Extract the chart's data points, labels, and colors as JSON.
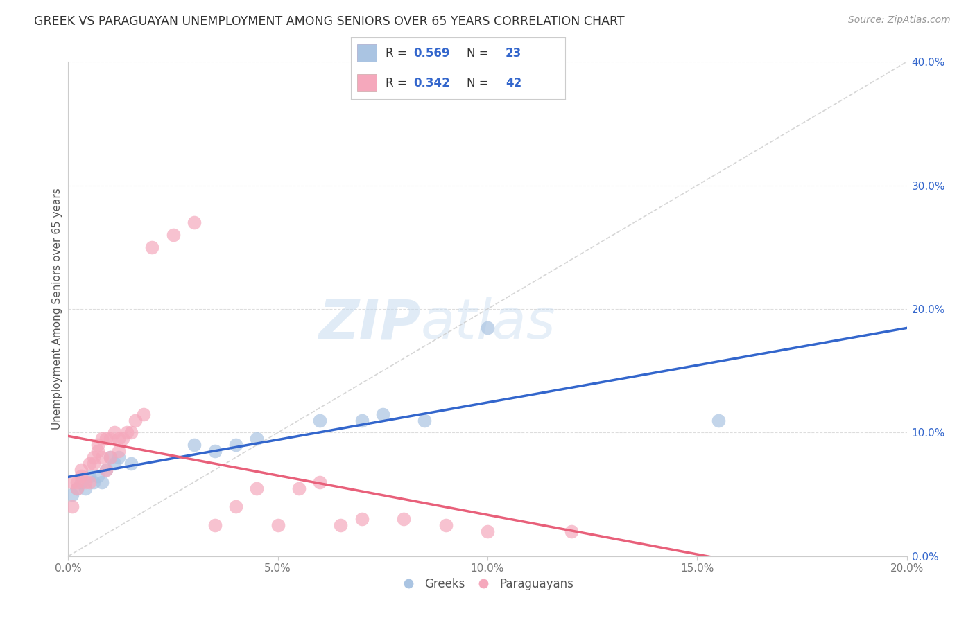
{
  "title": "GREEK VS PARAGUAYAN UNEMPLOYMENT AMONG SENIORS OVER 65 YEARS CORRELATION CHART",
  "source": "Source: ZipAtlas.com",
  "ylabel": "Unemployment Among Seniors over 65 years",
  "greek_R": "0.569",
  "greek_N": "23",
  "paraguayan_R": "0.342",
  "paraguayan_N": "42",
  "greek_color": "#aac4e2",
  "paraguayan_color": "#f5a8bc",
  "greek_line_color": "#3366cc",
  "paraguayan_line_color": "#e8607a",
  "diagonal_color": "#cccccc",
  "background_color": "#ffffff",
  "watermark_zip": "ZIP",
  "watermark_atlas": "atlas",
  "xlim": [
    0.0,
    0.2
  ],
  "ylim": [
    0.0,
    0.4
  ],
  "xtick_vals": [
    0.0,
    0.05,
    0.1,
    0.15,
    0.2
  ],
  "xtick_labels": [
    "0.0%",
    "5.0%",
    "10.0%",
    "15.0%",
    "20.0%"
  ],
  "ytick_vals": [
    0.0,
    0.1,
    0.2,
    0.3,
    0.4
  ],
  "ytick_labels": [
    "0.0%",
    "10.0%",
    "20.0%",
    "30.0%",
    "40.0%"
  ],
  "greek_x": [
    0.001,
    0.002,
    0.003,
    0.004,
    0.005,
    0.006,
    0.007,
    0.008,
    0.009,
    0.01,
    0.011,
    0.012,
    0.015,
    0.03,
    0.035,
    0.04,
    0.045,
    0.06,
    0.07,
    0.075,
    0.085,
    0.1,
    0.155
  ],
  "greek_y": [
    0.05,
    0.055,
    0.06,
    0.055,
    0.065,
    0.06,
    0.065,
    0.06,
    0.07,
    0.08,
    0.075,
    0.08,
    0.075,
    0.09,
    0.085,
    0.09,
    0.095,
    0.11,
    0.11,
    0.115,
    0.11,
    0.185,
    0.11
  ],
  "paraguayan_x": [
    0.001,
    0.001,
    0.002,
    0.002,
    0.003,
    0.003,
    0.004,
    0.005,
    0.005,
    0.006,
    0.006,
    0.007,
    0.007,
    0.008,
    0.008,
    0.009,
    0.009,
    0.01,
    0.01,
    0.011,
    0.012,
    0.012,
    0.013,
    0.014,
    0.015,
    0.016,
    0.018,
    0.02,
    0.025,
    0.03,
    0.035,
    0.04,
    0.045,
    0.05,
    0.055,
    0.06,
    0.065,
    0.07,
    0.08,
    0.09,
    0.1,
    0.12
  ],
  "paraguayan_y": [
    0.04,
    0.06,
    0.055,
    0.06,
    0.065,
    0.07,
    0.06,
    0.06,
    0.075,
    0.075,
    0.08,
    0.085,
    0.09,
    0.08,
    0.095,
    0.07,
    0.095,
    0.08,
    0.095,
    0.1,
    0.085,
    0.095,
    0.095,
    0.1,
    0.1,
    0.11,
    0.115,
    0.25,
    0.26,
    0.27,
    0.025,
    0.04,
    0.055,
    0.025,
    0.055,
    0.06,
    0.025,
    0.03,
    0.03,
    0.025,
    0.02,
    0.02
  ]
}
